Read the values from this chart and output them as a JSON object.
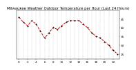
{
  "title": "Milwaukee Weather Outdoor Temperature per Hour (Last 24 Hours)",
  "hours": [
    0,
    1,
    2,
    3,
    4,
    5,
    6,
    7,
    8,
    9,
    10,
    11,
    12,
    13,
    14,
    15,
    16,
    17,
    18,
    19,
    20,
    21,
    22,
    23
  ],
  "temps": [
    46,
    43,
    41,
    44,
    42,
    38,
    34,
    37,
    40,
    39,
    41,
    43,
    44,
    44,
    44,
    42,
    40,
    37,
    35,
    34,
    32,
    30,
    27,
    25
  ],
  "line_color": "#cc0000",
  "marker_color": "#000000",
  "bg_color": "#ffffff",
  "grid_color": "#999999",
  "title_color": "#000000",
  "ylim": [
    22,
    50
  ],
  "yticks": [
    25,
    30,
    35,
    40,
    45
  ],
  "xticks": [
    0,
    2,
    4,
    6,
    8,
    10,
    12,
    14,
    16,
    18,
    20,
    22
  ],
  "title_fontsize": 3.8,
  "tick_fontsize": 3.0,
  "linewidth": 0.7,
  "markersize": 1.0
}
